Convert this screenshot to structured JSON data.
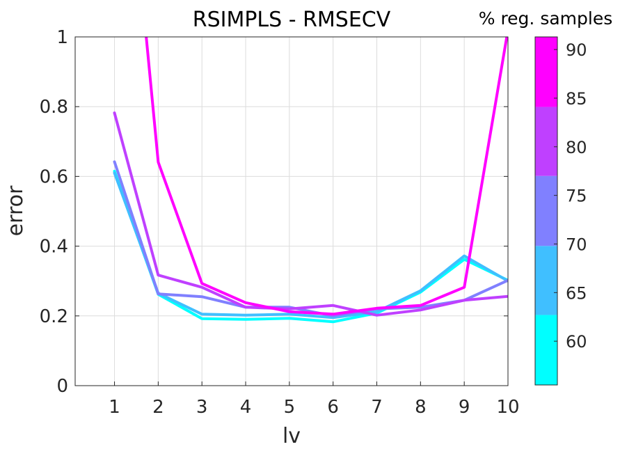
{
  "chart_data": {
    "type": "line",
    "title": "RSIMPLS - RMSECV",
    "xlabel": "lv",
    "ylabel": "error",
    "xlim": [
      0.1,
      10
    ],
    "ylim": [
      0,
      1
    ],
    "grid": true,
    "x": [
      1,
      2,
      3,
      4,
      5,
      6,
      7,
      8,
      9,
      10
    ],
    "xticks": [
      "1",
      "2",
      "3",
      "4",
      "5",
      "6",
      "7",
      "8",
      "9",
      "10"
    ],
    "yticks": [
      "0",
      "0.2",
      "0.4",
      "0.6",
      "0.8",
      "1"
    ],
    "series": [
      {
        "color": "#00ffff",
        "values": [
          0.615,
          0.262,
          0.192,
          0.19,
          0.193,
          0.183,
          0.208,
          0.268,
          0.362,
          0.302
        ]
      },
      {
        "color": "#40bfff",
        "values": [
          0.61,
          0.265,
          0.205,
          0.202,
          0.205,
          0.195,
          0.212,
          0.272,
          0.372,
          0.3
        ]
      },
      {
        "color": "#8080ff",
        "values": [
          0.642,
          0.263,
          0.255,
          0.225,
          0.225,
          0.2,
          0.22,
          0.225,
          0.245,
          0.302
        ]
      },
      {
        "color": "#bf40ff",
        "values": [
          0.782,
          0.317,
          0.282,
          0.225,
          0.22,
          0.23,
          0.202,
          0.217,
          0.245,
          0.256
        ]
      },
      {
        "color": "#ff00ff",
        "values": [
          1.95,
          0.641,
          0.293,
          0.238,
          0.212,
          0.205,
          0.222,
          0.23,
          0.282,
          1.02
        ]
      }
    ],
    "colorbar": {
      "label": "% reg. samples",
      "range": [
        55.5,
        91.3
      ],
      "ticks": [
        "60",
        "65",
        "70",
        "75",
        "80",
        "85",
        "90"
      ],
      "tick_values": [
        60,
        65,
        70,
        75,
        80,
        85,
        90
      ],
      "bands": [
        {
          "from": 55.5,
          "to": 62.7,
          "color": "#00ffff"
        },
        {
          "from": 62.7,
          "to": 69.8,
          "color": "#40bfff"
        },
        {
          "from": 69.8,
          "to": 77.0,
          "color": "#8080ff"
        },
        {
          "from": 77.0,
          "to": 84.1,
          "color": "#bf40ff"
        },
        {
          "from": 84.1,
          "to": 91.3,
          "color": "#ff00ff"
        }
      ]
    }
  }
}
